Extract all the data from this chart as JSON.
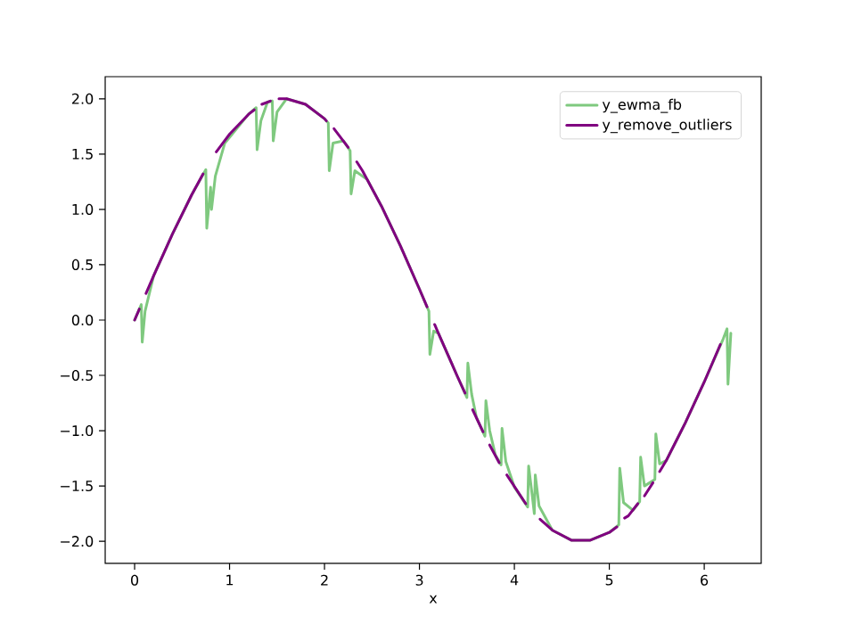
{
  "chart_data": {
    "type": "line",
    "xlabel": "x",
    "xlim": [
      -0.31,
      6.6
    ],
    "ylim": [
      -2.2,
      2.2
    ],
    "xticks": [
      0,
      1,
      2,
      3,
      4,
      5,
      6
    ],
    "yticks": [
      {
        "value": -2,
        "label": "−2.0"
      },
      {
        "value": -1.5,
        "label": "−1.5"
      },
      {
        "value": -1,
        "label": "−1.0"
      },
      {
        "value": -0.5,
        "label": "−0.5"
      },
      {
        "value": 0,
        "label": "0.0"
      },
      {
        "value": 0.5,
        "label": "0.5"
      },
      {
        "value": 1,
        "label": "1.0"
      },
      {
        "value": 1.5,
        "label": "1.5"
      },
      {
        "value": 2,
        "label": "2.0"
      }
    ],
    "legend": "top right",
    "grid": false,
    "line_style": "solid",
    "series": [
      {
        "name": "y_ewma_fb",
        "color": "#7fc97f",
        "x": [
          0,
          0.07,
          0.08,
          0.11,
          0.2,
          0.4,
          0.6,
          0.75,
          0.76,
          0.8,
          0.81,
          0.85,
          0.95,
          1.2,
          1.28,
          1.29,
          1.33,
          1.4,
          1.45,
          1.46,
          1.5,
          1.6,
          1.8,
          2.0,
          2.04,
          2.05,
          2.09,
          2.2,
          2.27,
          2.28,
          2.32,
          2.45,
          2.6,
          2.8,
          3.0,
          3.1,
          3.11,
          3.15,
          3.2,
          3.4,
          3.5,
          3.51,
          3.55,
          3.6,
          3.69,
          3.7,
          3.74,
          3.8,
          3.86,
          3.87,
          3.91,
          4.0,
          4.14,
          4.15,
          4.19,
          4.21,
          4.22,
          4.26,
          4.4,
          4.6,
          4.8,
          5.0,
          5.1,
          5.11,
          5.15,
          5.25,
          5.32,
          5.33,
          5.37,
          5.48,
          5.49,
          5.53,
          5.6,
          5.8,
          6.0,
          6.2,
          6.24,
          6.25,
          6.28
        ],
        "values": [
          0,
          0.14,
          -0.2,
          0.08,
          0.4,
          0.78,
          1.13,
          1.36,
          0.83,
          1.2,
          1.0,
          1.3,
          1.6,
          1.86,
          1.92,
          1.54,
          1.8,
          1.97,
          1.98,
          1.62,
          1.88,
          2.0,
          1.95,
          1.82,
          1.78,
          1.35,
          1.6,
          1.62,
          1.53,
          1.14,
          1.35,
          1.27,
          1.03,
          0.67,
          0.28,
          0.08,
          -0.31,
          -0.1,
          -0.12,
          -0.51,
          -0.7,
          -0.39,
          -0.67,
          -0.88,
          -1.05,
          -0.73,
          -1.0,
          -1.22,
          -1.31,
          -0.98,
          -1.28,
          -1.51,
          -1.69,
          -1.32,
          -1.6,
          -1.75,
          -1.4,
          -1.68,
          -1.9,
          -1.99,
          -1.99,
          -1.92,
          -1.85,
          -1.34,
          -1.65,
          -1.72,
          -1.64,
          -1.24,
          -1.5,
          -1.44,
          -1.03,
          -1.3,
          -1.27,
          -0.93,
          -0.56,
          -0.17,
          -0.08,
          -0.58,
          -0.12
        ]
      },
      {
        "name": "y_remove_outliers",
        "color": "#800080",
        "x": [
          0,
          0.05,
          0.08,
          0.12,
          0.2,
          0.4,
          0.6,
          0.72,
          0.79,
          0.86,
          1.0,
          1.2,
          1.26,
          1.3,
          1.34,
          1.43,
          1.47,
          1.52,
          1.6,
          1.8,
          2.0,
          2.02,
          2.06,
          2.1,
          2.25,
          2.3,
          2.34,
          2.4,
          2.6,
          2.8,
          3.0,
          3.08,
          3.12,
          3.16,
          3.2,
          3.4,
          3.48,
          3.52,
          3.56,
          3.67,
          3.7,
          3.74,
          3.84,
          3.88,
          3.92,
          4.12,
          4.2,
          4.27,
          4.4,
          4.6,
          4.8,
          5.0,
          5.08,
          5.12,
          5.16,
          5.2,
          5.3,
          5.34,
          5.37,
          5.46,
          5.5,
          5.53,
          5.6,
          5.8,
          6.0,
          6.17
        ],
        "values": [
          0,
          0.1,
          null,
          0.24,
          0.4,
          0.78,
          1.13,
          1.32,
          null,
          1.52,
          1.68,
          1.86,
          1.9,
          null,
          1.95,
          1.98,
          null,
          2.0,
          2.0,
          1.95,
          1.82,
          1.8,
          null,
          1.73,
          1.56,
          null,
          1.43,
          1.35,
          1.03,
          0.67,
          0.28,
          0.12,
          null,
          -0.04,
          -0.12,
          -0.51,
          -0.66,
          null,
          -0.81,
          -1.01,
          null,
          -1.13,
          -1.29,
          null,
          -1.4,
          -1.66,
          null,
          -1.8,
          -1.9,
          -1.99,
          -1.99,
          -1.92,
          -1.87,
          null,
          -1.79,
          -1.77,
          -1.66,
          null,
          -1.59,
          -1.47,
          null,
          -1.37,
          -1.27,
          -0.93,
          -0.56,
          -0.22
        ]
      }
    ]
  }
}
